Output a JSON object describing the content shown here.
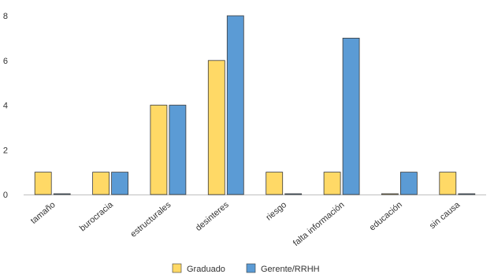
{
  "chart_data": {
    "type": "bar",
    "categories": [
      "tamaño",
      "burocracia",
      "estructurales",
      "desinteres",
      "riesgo",
      "falta información",
      "educación",
      "sin causa"
    ],
    "series": [
      {
        "name": "Graduado",
        "values": [
          1,
          1,
          4,
          6,
          1,
          1,
          0,
          1
        ],
        "color": "#FFD966"
      },
      {
        "name": "Gerente/RRHH",
        "values": [
          0,
          1,
          4,
          8,
          0,
          7,
          1,
          0
        ],
        "color": "#5B9BD5"
      }
    ],
    "title": "",
    "xlabel": "",
    "ylabel": "",
    "ylim": [
      0,
      8
    ],
    "yticks": [
      0,
      2,
      4,
      6,
      8
    ],
    "grid": false,
    "legend": "bottom-center"
  }
}
